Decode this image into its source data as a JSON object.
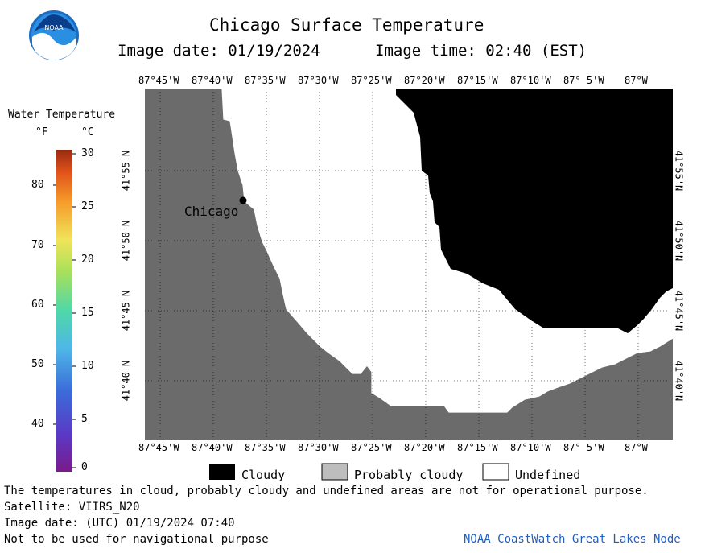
{
  "header": {
    "title": "Chicago Surface Temperature",
    "image_date": "Image date: 01/19/2024",
    "image_time": "Image time: 02:40 (EST)"
  },
  "logo": {
    "text": "NOAA"
  },
  "map": {
    "lon_labels": [
      "87°45'W",
      "87°40'W",
      "87°35'W",
      "87°30'W",
      "87°25'W",
      "87°20'W",
      "87°15'W",
      "87°10'W",
      "87° 5'W",
      "87°W"
    ],
    "lat_labels": [
      "41°55'N",
      "41°50'N",
      "41°45'N",
      "41°40'N"
    ],
    "city_label": "Chicago"
  },
  "colorbar": {
    "title": "Water Temperature",
    "unit_f": "°F",
    "unit_c": "°C",
    "f_ticks": [
      "80",
      "70",
      "60",
      "50",
      "40"
    ],
    "c_ticks": [
      "30",
      "25",
      "20",
      "15",
      "10",
      "5",
      "0"
    ]
  },
  "legend": {
    "cloudy": "Cloudy",
    "probably_cloudy": "Probably cloudy",
    "undefined": "Undefined"
  },
  "colors": {
    "land": "#6b6b6b",
    "cloudy": "#000000",
    "probably_cloudy": "#bdbdbd",
    "undefined": "#ffffff",
    "footer_link": "#1e5fbf"
  },
  "footer": {
    "disclaimer": "The temperatures in cloud, probably cloudy and undefined areas are not for operational purpose.",
    "satellite": "Satellite: VIIRS_N20",
    "utc_date": "Image date: (UTC) 01/19/2024  07:40",
    "nav_warning": "Not to be used for navigational purpose",
    "credit": "NOAA CoastWatch Great Lakes Node"
  }
}
